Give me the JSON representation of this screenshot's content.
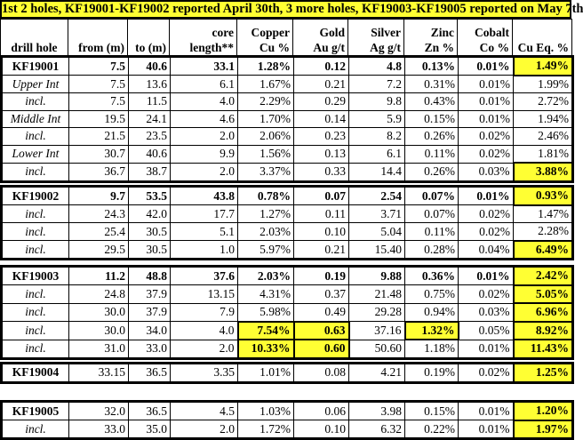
{
  "title": "1st 2 holes, KF19001-KF19002 reported April 30th, 3 more holes, KF19003-KF19005 reported on May 7th",
  "highlight_color": "#ffff33",
  "headers": [
    [
      "",
      "drill hole"
    ],
    [
      "",
      "from (m)"
    ],
    [
      "",
      "to (m)"
    ],
    [
      "core",
      "length**"
    ],
    [
      "Copper",
      "Cu %"
    ],
    [
      "Gold",
      "Au g/t"
    ],
    [
      "Silver",
      "Ag g/t"
    ],
    [
      "Zinc",
      "Zn %"
    ],
    [
      "Cobalt",
      "Co %"
    ],
    [
      "",
      "Cu Eq. %"
    ]
  ],
  "groups": [
    {
      "rows": [
        {
          "type": "main",
          "cells": [
            "KF19001",
            "7.5",
            "40.6",
            "33.1",
            "1.28%",
            "0.12",
            "4.8",
            "0.13%",
            "0.01%",
            "1.49%"
          ],
          "highlight": [
            9
          ]
        },
        {
          "type": "sub",
          "cells": [
            "Upper Int",
            "7.5",
            "13.6",
            "6.1",
            "1.67%",
            "0.21",
            "7.2",
            "0.31%",
            "0.01%",
            "1.99%"
          ],
          "highlight": []
        },
        {
          "type": "sub",
          "cells": [
            "incl.",
            "7.5",
            "11.5",
            "4.0",
            "2.29%",
            "0.29",
            "9.8",
            "0.43%",
            "0.01%",
            "2.72%"
          ],
          "highlight": []
        },
        {
          "type": "sub",
          "cells": [
            "Middle Int",
            "19.5",
            "24.1",
            "4.6",
            "1.70%",
            "0.14",
            "5.9",
            "0.15%",
            "0.01%",
            "1.94%"
          ],
          "highlight": []
        },
        {
          "type": "sub",
          "cells": [
            "incl.",
            "21.5",
            "23.5",
            "2.0",
            "2.06%",
            "0.23",
            "8.2",
            "0.26%",
            "0.02%",
            "2.46%"
          ],
          "highlight": []
        },
        {
          "type": "sub",
          "cells": [
            "Lower Int",
            "30.7",
            "40.6",
            "9.9",
            "1.56%",
            "0.13",
            "6.1",
            "0.11%",
            "0.02%",
            "1.81%"
          ],
          "highlight": []
        },
        {
          "type": "sub",
          "cells": [
            "incl.",
            "36.7",
            "38.7",
            "2.0",
            "3.37%",
            "0.33",
            "14.4",
            "0.26%",
            "0.03%",
            "3.88%"
          ],
          "highlight": [
            9
          ]
        }
      ]
    },
    {
      "rows": [
        {
          "type": "main",
          "cells": [
            "KF19002",
            "9.7",
            "53.5",
            "43.8",
            "0.78%",
            "0.07",
            "2.54",
            "0.07%",
            "0.01%",
            "0.93%"
          ],
          "highlight": [
            9
          ]
        },
        {
          "type": "sub",
          "cells": [
            "incl.",
            "24.3",
            "42.0",
            "17.7",
            "1.27%",
            "0.11",
            "3.71",
            "0.07%",
            "0.02%",
            "1.47%"
          ],
          "highlight": []
        },
        {
          "type": "sub",
          "cells": [
            "incl.",
            "25.4",
            "30.5",
            "5.1",
            "2.03%",
            "0.10",
            "5.04",
            "0.11%",
            "0.02%",
            "2.28%"
          ],
          "highlight": []
        },
        {
          "type": "sub",
          "cells": [
            "incl.",
            "29.5",
            "30.5",
            "1.0",
            "5.97%",
            "0.21",
            "15.40",
            "0.28%",
            "0.04%",
            "6.49%"
          ],
          "highlight": [
            9
          ]
        }
      ]
    },
    {
      "rows": [
        {
          "type": "main",
          "cells": [
            "KF19003",
            "11.2",
            "48.8",
            "37.6",
            "2.03%",
            "0.19",
            "9.88",
            "0.36%",
            "0.01%",
            "2.42%"
          ],
          "highlight": [
            9
          ]
        },
        {
          "type": "sub",
          "cells": [
            "incl.",
            "24.8",
            "37.9",
            "13.15",
            "4.31%",
            "0.37",
            "21.48",
            "0.75%",
            "0.02%",
            "5.05%"
          ],
          "highlight": [
            9
          ]
        },
        {
          "type": "sub",
          "cells": [
            "incl.",
            "30.0",
            "37.9",
            "7.9",
            "5.98%",
            "0.49",
            "29.28",
            "0.94%",
            "0.03%",
            "6.96%"
          ],
          "highlight": [
            9
          ]
        },
        {
          "type": "sub",
          "cells": [
            "incl.",
            "30.0",
            "34.0",
            "4.0",
            "7.54%",
            "0.63",
            "37.16",
            "1.32%",
            "0.05%",
            "8.92%"
          ],
          "highlight": [
            4,
            5,
            7,
            9
          ]
        },
        {
          "type": "sub",
          "cells": [
            "incl.",
            "31.0",
            "33.0",
            "2.0",
            "10.33%",
            "0.60",
            "50.60",
            "1.18%",
            "0.01%",
            "11.43%"
          ],
          "highlight": [
            4,
            5,
            9
          ]
        }
      ]
    },
    {
      "rows": [
        {
          "type": "hole",
          "cells": [
            "KF19004",
            "33.15",
            "36.5",
            "3.35",
            "1.01%",
            "0.08",
            "4.21",
            "0.19%",
            "0.02%",
            "1.25%"
          ],
          "highlight": [
            9
          ]
        }
      ]
    },
    {
      "rows": [
        {
          "type": "hole",
          "cells": [
            "KF19005",
            "32.0",
            "36.5",
            "4.5",
            "1.03%",
            "0.06",
            "3.98",
            "0.15%",
            "0.01%",
            "1.20%"
          ],
          "highlight": [
            9
          ]
        },
        {
          "type": "sub",
          "cells": [
            "incl.",
            "33.0",
            "35.0",
            "2.0",
            "1.72%",
            "0.10",
            "6.32",
            "0.22%",
            "0.01%",
            "1.97%"
          ],
          "highlight": [
            9
          ]
        }
      ]
    }
  ]
}
